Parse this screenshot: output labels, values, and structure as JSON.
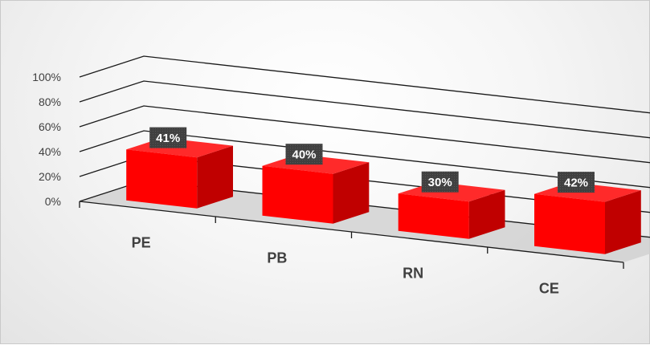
{
  "chart_data": {
    "type": "bar",
    "categories": [
      "PE",
      "PB",
      "RN",
      "CE"
    ],
    "values": [
      41,
      40,
      30,
      42
    ],
    "data_labels": [
      "41%",
      "40%",
      "30%",
      "42%"
    ],
    "y_ticks": [
      "0%",
      "20%",
      "40%",
      "60%",
      "80%",
      "100%"
    ],
    "ylim": [
      0,
      100
    ],
    "grid": true,
    "legend": "none",
    "style": "3d",
    "colors": {
      "bar_front": "#ff0000",
      "bar_top": "#ff2a2a",
      "bar_side": "#c00000",
      "label_box": "#404040",
      "label_text": "#ffffff",
      "gridline": "#1a1a1a",
      "floor": "#d0d0d0"
    }
  }
}
